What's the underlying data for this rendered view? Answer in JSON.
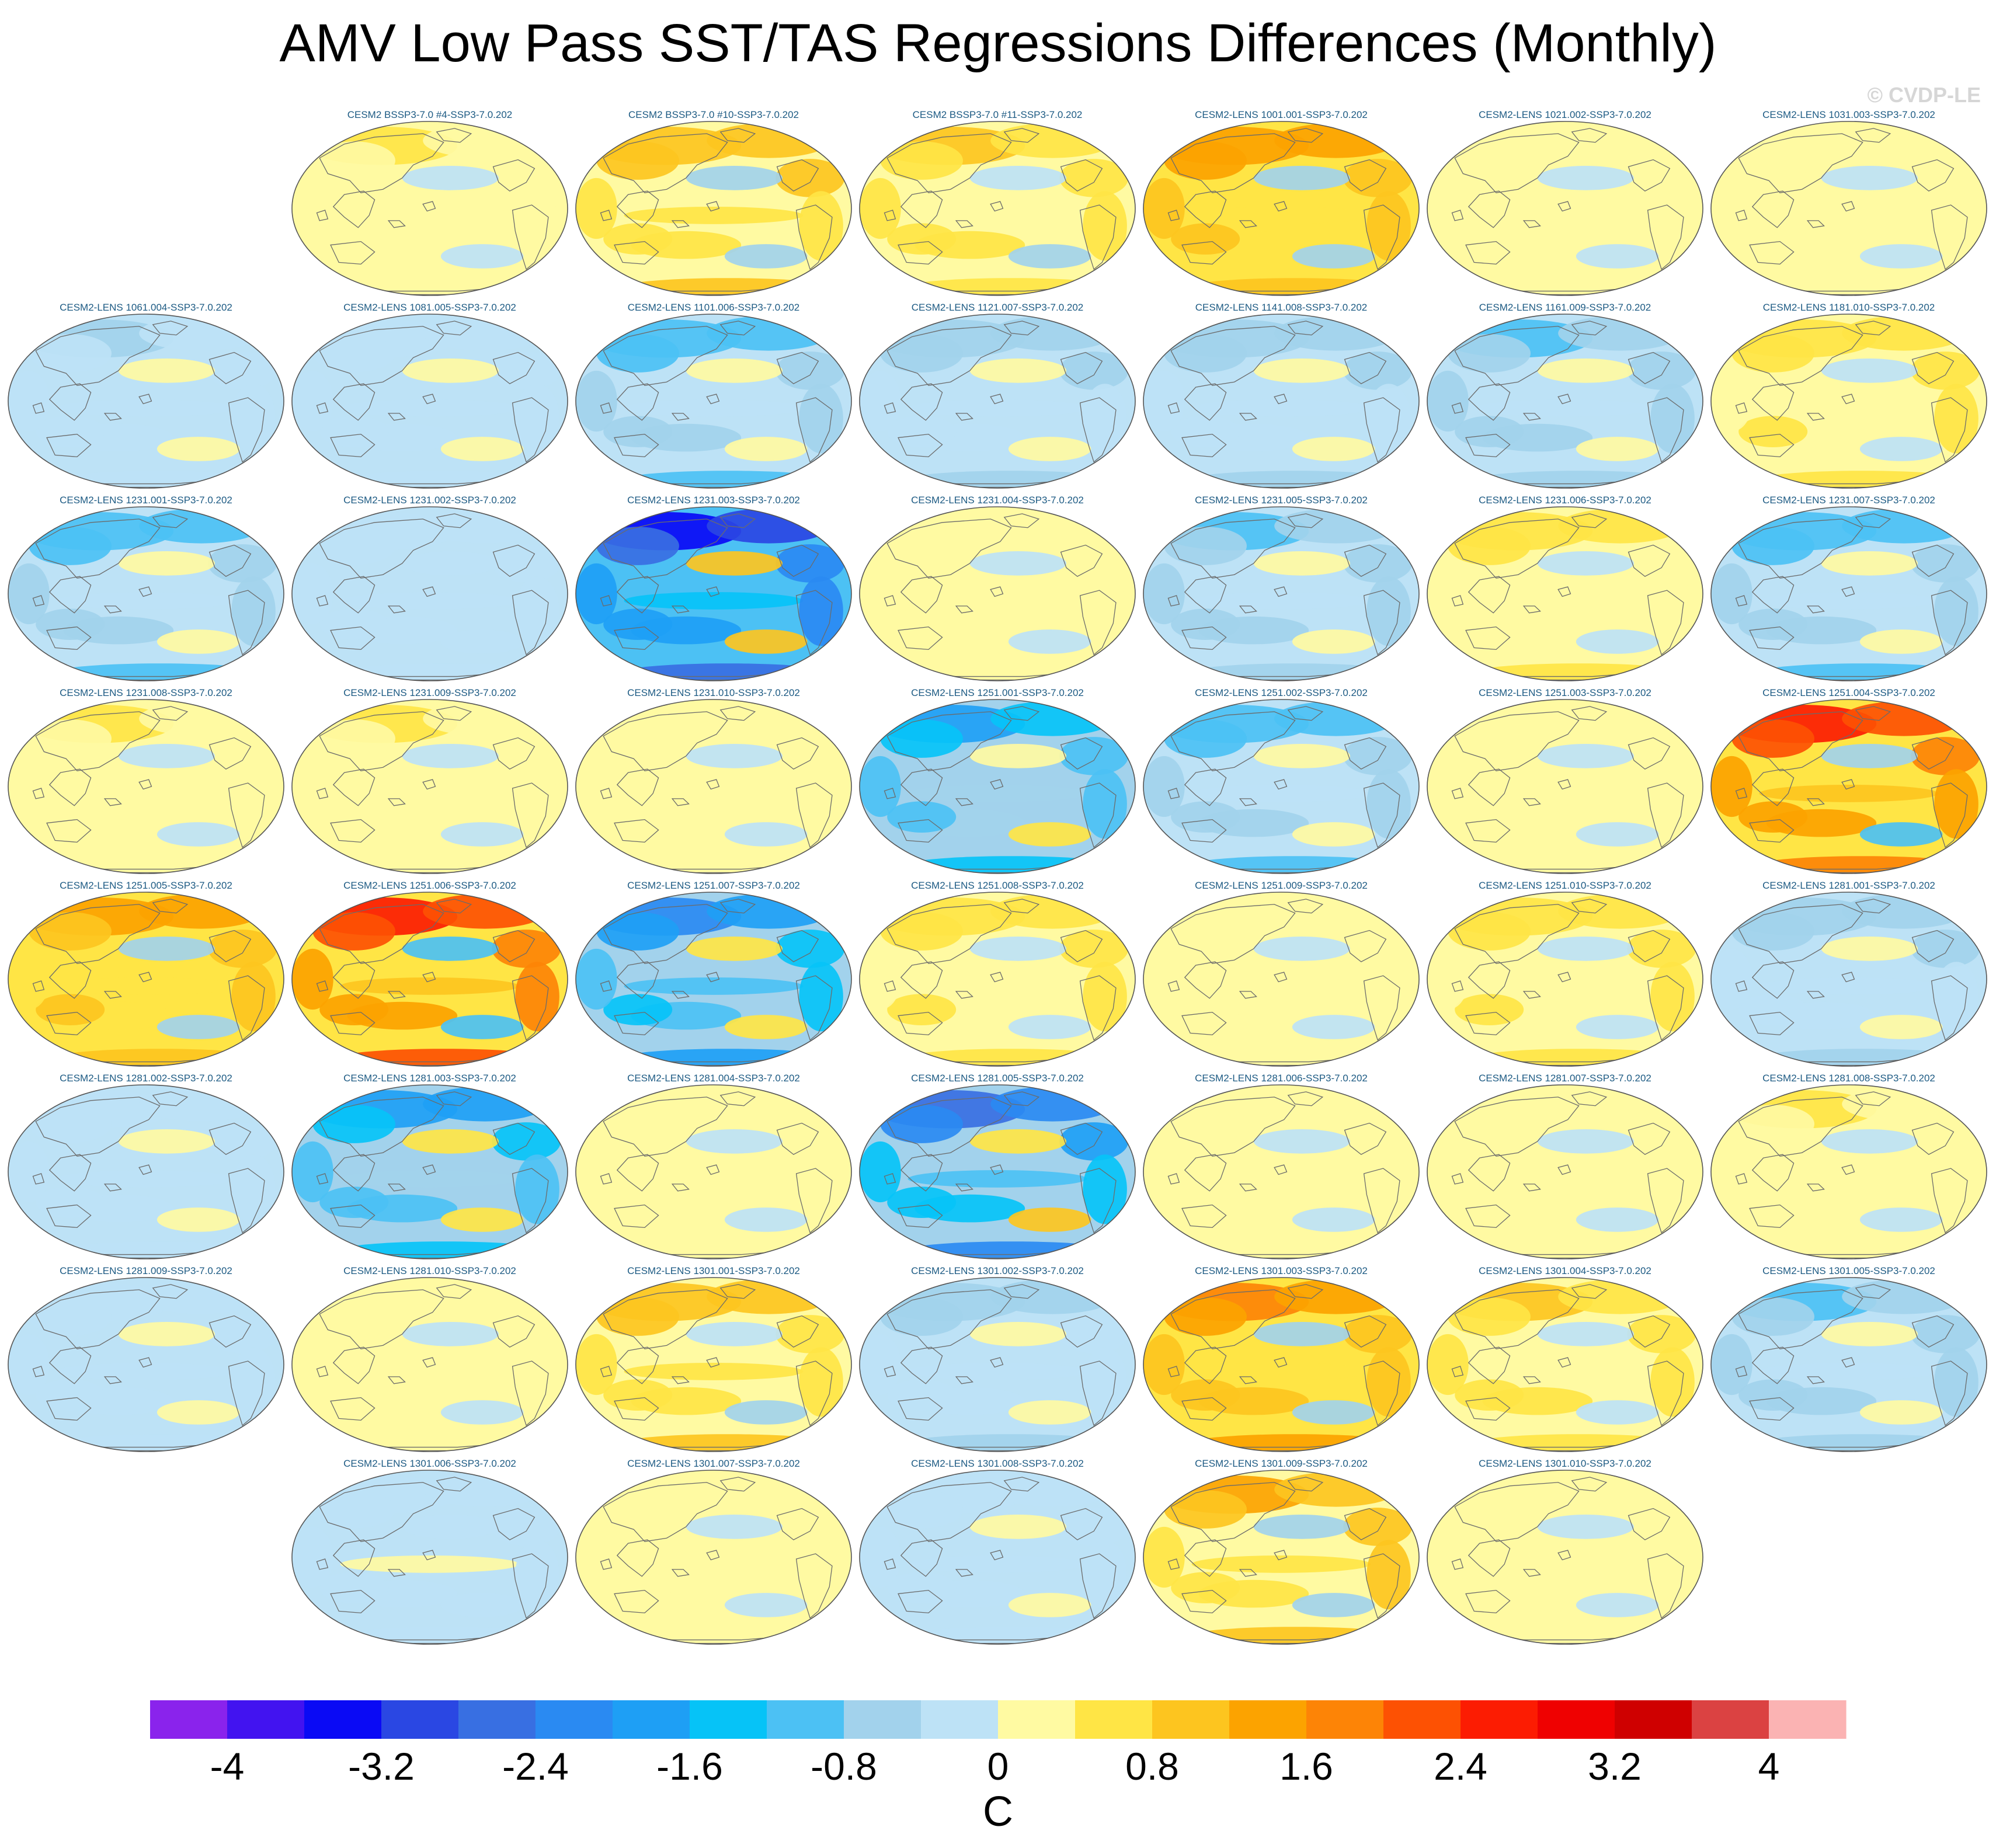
{
  "chart_data": {
    "type": "heatmap",
    "title": "AMV Low Pass SST/TAS Regressions Differences (Monthly)",
    "credit": "© CVDP-LE",
    "projection": "robinson-global-maps",
    "colorbar": {
      "unit": "C",
      "min": -4.4,
      "max": 4.4,
      "step": 0.4,
      "tick_values": [
        -4,
        -3.2,
        -2.4,
        -1.6,
        -0.8,
        0,
        0.8,
        1.6,
        2.4,
        3.2,
        4
      ],
      "tick_labels": [
        "-4",
        "-3.2",
        "-2.4",
        "-1.6",
        "-0.8",
        "0",
        "0.8",
        "1.6",
        "2.4",
        "3.2",
        "4"
      ],
      "colors": [
        "#8a23ec",
        "#4213f0",
        "#0a0af5",
        "#2a47e3",
        "#386fe2",
        "#2a8af2",
        "#1e9ff5",
        "#06c3f7",
        "#4cc1f4",
        "#a2d2ec",
        "#bde2f6",
        "#fffaa2",
        "#ffe545",
        "#fdc51f",
        "#fca300",
        "#fd8406",
        "#fd5103",
        "#fc1c02",
        "#ef0101",
        "#cf0000",
        "#db4242",
        "#fbb3b3"
      ]
    },
    "panels": [
      {
        "label": "CESM2 BSSP3-7.0 #4-SSP3-7.0.202",
        "anomaly": 0.3
      },
      {
        "label": "CESM2 BSSP3-7.0 #10-SSP3-7.0.202",
        "anomaly": 0.9
      },
      {
        "label": "CESM2 BSSP3-7.0 #11-SSP3-7.0.202",
        "anomaly": 0.7
      },
      {
        "label": "CESM2-LENS 1001.001-SSP3-7.0.202",
        "anomaly": 1.2
      },
      {
        "label": "CESM2-LENS 1021.002-SSP3-7.0.202",
        "anomaly": 0.2
      },
      {
        "label": "CESM2-LENS 1031.003-SSP3-7.0.202",
        "anomaly": 0.1
      },
      {
        "label": "CESM2-LENS 1061.004-SSP3-7.0.202",
        "anomaly": -0.4
      },
      {
        "label": "CESM2-LENS 1081.005-SSP3-7.0.202",
        "anomaly": -0.3
      },
      {
        "label": "CESM2-LENS 1101.006-SSP3-7.0.202",
        "anomaly": -1.0
      },
      {
        "label": "CESM2-LENS 1121.007-SSP3-7.0.202",
        "anomaly": -0.6
      },
      {
        "label": "CESM2-LENS 1141.008-SSP3-7.0.202",
        "anomaly": -0.6
      },
      {
        "label": "CESM2-LENS 1161.009-SSP3-7.0.202",
        "anomaly": -0.8
      },
      {
        "label": "CESM2-LENS 1181.010-SSP3-7.0.202",
        "anomaly": 0.5
      },
      {
        "label": "CESM2-LENS 1231.001-SSP3-7.0.202",
        "anomaly": -0.9
      },
      {
        "label": "CESM2-LENS 1231.002-SSP3-7.0.202",
        "anomaly": -0.2
      },
      {
        "label": "CESM2-LENS 1231.003-SSP3-7.0.202",
        "anomaly": -2.8
      },
      {
        "label": "CESM2-LENS 1231.004-SSP3-7.0.202",
        "anomaly": 0.1
      },
      {
        "label": "CESM2-LENS 1231.005-SSP3-7.0.202",
        "anomaly": -0.8
      },
      {
        "label": "CESM2-LENS 1231.006-SSP3-7.0.202",
        "anomaly": 0.4
      },
      {
        "label": "CESM2-LENS 1231.007-SSP3-7.0.202",
        "anomaly": -0.9
      },
      {
        "label": "CESM2-LENS 1231.008-SSP3-7.0.202",
        "anomaly": 0.3
      },
      {
        "label": "CESM2-LENS 1231.009-SSP3-7.0.202",
        "anomaly": 0.3
      },
      {
        "label": "CESM2-LENS 1231.010-SSP3-7.0.202",
        "anomaly": 0.2
      },
      {
        "label": "CESM2-LENS 1251.001-SSP3-7.0.202",
        "anomaly": -1.4
      },
      {
        "label": "CESM2-LENS 1251.002-SSP3-7.0.202",
        "anomaly": -1.0
      },
      {
        "label": "CESM2-LENS 1251.003-SSP3-7.0.202",
        "anomaly": 0.1
      },
      {
        "label": "CESM2-LENS 1251.004-SSP3-7.0.202",
        "anomaly": 2.0
      },
      {
        "label": "CESM2-LENS 1251.005-SSP3-7.0.202",
        "anomaly": 1.1
      },
      {
        "label": "CESM2-LENS 1251.006-SSP3-7.0.202",
        "anomaly": 2.1
      },
      {
        "label": "CESM2-LENS 1251.007-SSP3-7.0.202",
        "anomaly": -1.9
      },
      {
        "label": "CESM2-LENS 1251.008-SSP3-7.0.202",
        "anomaly": 0.5
      },
      {
        "label": "CESM2-LENS 1251.009-SSP3-7.0.202",
        "anomaly": 0.0
      },
      {
        "label": "CESM2-LENS 1251.010-SSP3-7.0.202",
        "anomaly": 0.5
      },
      {
        "label": "CESM2-LENS 1281.001-SSP3-7.0.202",
        "anomaly": -0.6
      },
      {
        "label": "CESM2-LENS 1281.002-SSP3-7.0.202",
        "anomaly": -0.3
      },
      {
        "label": "CESM2-LENS 1281.003-SSP3-7.0.202",
        "anomaly": -1.6
      },
      {
        "label": "CESM2-LENS 1281.004-SSP3-7.0.202",
        "anomaly": 0.1
      },
      {
        "label": "CESM2-LENS 1281.005-SSP3-7.0.202",
        "anomaly": -2.2
      },
      {
        "label": "CESM2-LENS 1281.006-SSP3-7.0.202",
        "anomaly": 0.1
      },
      {
        "label": "CESM2-LENS 1281.007-SSP3-7.0.202",
        "anomaly": 0.0
      },
      {
        "label": "CESM2-LENS 1281.008-SSP3-7.0.202",
        "anomaly": 0.3
      },
      {
        "label": "CESM2-LENS 1281.009-SSP3-7.0.202",
        "anomaly": -0.3
      },
      {
        "label": "CESM2-LENS 1281.010-SSP3-7.0.202",
        "anomaly": 0.1
      },
      {
        "label": "CESM2-LENS 1301.001-SSP3-7.0.202",
        "anomaly": 0.8
      },
      {
        "label": "CESM2-LENS 1301.002-SSP3-7.0.202",
        "anomaly": -0.5
      },
      {
        "label": "CESM2-LENS 1301.003-SSP3-7.0.202",
        "anomaly": 1.3
      },
      {
        "label": "CESM2-LENS 1301.004-SSP3-7.0.202",
        "anomaly": 0.6
      },
      {
        "label": "CESM2-LENS 1301.005-SSP3-7.0.202",
        "anomaly": -0.8
      },
      {
        "label": "CESM2-LENS 1301.006-SSP3-7.0.202",
        "anomaly": -0.1
      },
      {
        "label": "CESM2-LENS 1301.007-SSP3-7.0.202",
        "anomaly": 0.2
      },
      {
        "label": "CESM2-LENS 1301.008-SSP3-7.0.202",
        "anomaly": -0.3
      },
      {
        "label": "CESM2-LENS 1301.009-SSP3-7.0.202",
        "anomaly": 1.0
      },
      {
        "label": "CESM2-LENS 1301.010-SSP3-7.0.202",
        "anomaly": 0.2
      }
    ]
  }
}
